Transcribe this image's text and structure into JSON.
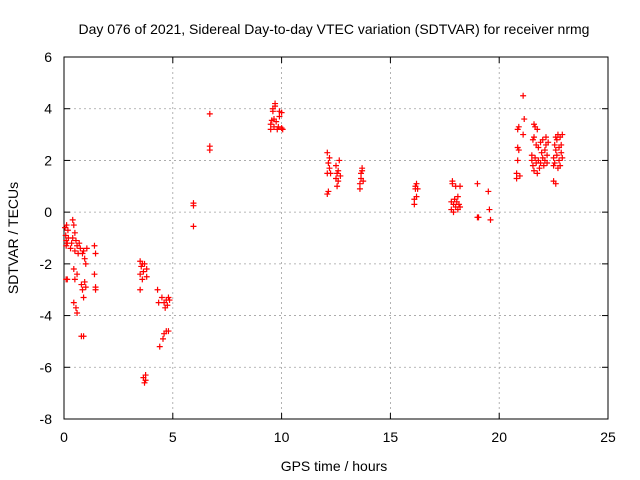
{
  "chart_data": {
    "type": "scatter",
    "title": "Day 076 of 2021, Sidereal Day-to-day VTEC variation (SDTVAR) for receiver nrmg",
    "xlabel": "GPS time / hours",
    "ylabel": "SDTVAR / TECUs",
    "xlim": [
      0,
      25
    ],
    "ylim": [
      -8,
      6
    ],
    "xticks": [
      0,
      5,
      10,
      15,
      20,
      25
    ],
    "yticks": [
      -8,
      -6,
      -4,
      -2,
      0,
      2,
      4,
      6
    ],
    "x_tick_labels": [
      "0",
      "5",
      "10",
      "15",
      "20",
      "25"
    ],
    "y_tick_labels": [
      "-8",
      "-6",
      "-4",
      "-2",
      "0",
      "2",
      "4",
      "6"
    ],
    "grid": true,
    "marker": "+",
    "color": "#ff0000",
    "series": [
      {
        "name": "SDTVAR",
        "points": [
          [
            0.05,
            -0.6
          ],
          [
            0.08,
            -0.9
          ],
          [
            0.1,
            -1.1
          ],
          [
            0.1,
            -1.3
          ],
          [
            0.12,
            -0.5
          ],
          [
            0.15,
            -1.2
          ],
          [
            0.15,
            -2.6
          ],
          [
            0.1,
            -2.6
          ],
          [
            0.18,
            -0.7
          ],
          [
            0.2,
            -1.0
          ],
          [
            0.3,
            -1.4
          ],
          [
            0.35,
            -1.2
          ],
          [
            0.4,
            -0.3
          ],
          [
            0.4,
            -1.0
          ],
          [
            0.45,
            -0.5
          ],
          [
            0.45,
            -2.2
          ],
          [
            0.45,
            -3.5
          ],
          [
            0.5,
            -0.8
          ],
          [
            0.5,
            -1.5
          ],
          [
            0.5,
            -2.6
          ],
          [
            0.55,
            -3.7
          ],
          [
            0.55,
            -1.1
          ],
          [
            0.6,
            -1.3
          ],
          [
            0.6,
            -2.4
          ],
          [
            0.65,
            -1.6
          ],
          [
            0.6,
            -3.9
          ],
          [
            0.7,
            -1.2
          ],
          [
            0.75,
            -1.4
          ],
          [
            0.8,
            -2.8
          ],
          [
            0.8,
            -4.8
          ],
          [
            0.85,
            -1.6
          ],
          [
            0.85,
            -3.0
          ],
          [
            0.9,
            -1.5
          ],
          [
            0.9,
            -3.3
          ],
          [
            0.9,
            -4.8
          ],
          [
            0.95,
            -1.8
          ],
          [
            0.95,
            -2.7
          ],
          [
            1.0,
            -2.0
          ],
          [
            1.0,
            -2.9
          ],
          [
            1.05,
            -1.4
          ],
          [
            1.4,
            -1.3
          ],
          [
            1.45,
            -1.6
          ],
          [
            1.4,
            -2.4
          ],
          [
            1.45,
            -2.9
          ],
          [
            1.45,
            -3.0
          ],
          [
            3.5,
            -1.9
          ],
          [
            3.55,
            -2.1
          ],
          [
            3.5,
            -2.4
          ],
          [
            3.5,
            -3.0
          ],
          [
            3.6,
            -2.0
          ],
          [
            3.6,
            -2.6
          ],
          [
            3.65,
            -2.3
          ],
          [
            3.7,
            -2.0
          ],
          [
            3.7,
            -6.6
          ],
          [
            3.65,
            -6.4
          ],
          [
            3.75,
            -6.5
          ],
          [
            3.75,
            -6.3
          ],
          [
            3.8,
            -2.5
          ],
          [
            3.8,
            -2.2
          ],
          [
            4.3,
            -3.0
          ],
          [
            4.35,
            -3.5
          ],
          [
            4.4,
            -5.2
          ],
          [
            4.5,
            -3.3
          ],
          [
            4.55,
            -4.9
          ],
          [
            4.6,
            -3.5
          ],
          [
            4.6,
            -4.7
          ],
          [
            4.65,
            -3.7
          ],
          [
            4.7,
            -3.4
          ],
          [
            4.7,
            -4.6
          ],
          [
            4.75,
            -3.6
          ],
          [
            4.8,
            -3.3
          ],
          [
            4.8,
            -4.6
          ],
          [
            4.85,
            -3.4
          ],
          [
            5.95,
            -0.55
          ],
          [
            5.95,
            0.25
          ],
          [
            5.95,
            0.35
          ],
          [
            6.7,
            2.4
          ],
          [
            6.7,
            2.55
          ],
          [
            6.7,
            3.8
          ],
          [
            9.5,
            3.2
          ],
          [
            9.5,
            3.4
          ],
          [
            9.55,
            3.55
          ],
          [
            9.6,
            3.9
          ],
          [
            9.6,
            4.0
          ],
          [
            9.65,
            3.3
          ],
          [
            9.65,
            3.6
          ],
          [
            9.7,
            4.1
          ],
          [
            9.7,
            4.2
          ],
          [
            9.75,
            3.5
          ],
          [
            9.8,
            3.2
          ],
          [
            9.85,
            3.3
          ],
          [
            9.9,
            3.9
          ],
          [
            9.9,
            3.7
          ],
          [
            10.0,
            3.85
          ],
          [
            10.0,
            3.25
          ],
          [
            10.05,
            3.2
          ],
          [
            12.1,
            0.7
          ],
          [
            12.1,
            1.5
          ],
          [
            12.1,
            2.3
          ],
          [
            12.15,
            0.8
          ],
          [
            12.15,
            1.9
          ],
          [
            12.2,
            2.1
          ],
          [
            12.2,
            1.7
          ],
          [
            12.25,
            1.5
          ],
          [
            12.5,
            1.3
          ],
          [
            12.5,
            1.8
          ],
          [
            12.55,
            1.5
          ],
          [
            12.55,
            1.0
          ],
          [
            12.6,
            1.6
          ],
          [
            12.6,
            1.2
          ],
          [
            12.65,
            2.0
          ],
          [
            12.7,
            1.4
          ],
          [
            13.6,
            0.9
          ],
          [
            13.6,
            1.1
          ],
          [
            13.65,
            1.3
          ],
          [
            13.65,
            1.5
          ],
          [
            13.7,
            1.6
          ],
          [
            13.7,
            1.7
          ],
          [
            13.75,
            1.2
          ],
          [
            16.1,
            0.3
          ],
          [
            16.1,
            0.5
          ],
          [
            16.15,
            0.9
          ],
          [
            16.15,
            1.0
          ],
          [
            16.2,
            1.1
          ],
          [
            16.2,
            0.6
          ],
          [
            16.25,
            0.9
          ],
          [
            17.8,
            0.1
          ],
          [
            17.8,
            0.4
          ],
          [
            17.85,
            1.1
          ],
          [
            17.85,
            1.2
          ],
          [
            17.9,
            0.3
          ],
          [
            17.9,
            0.0
          ],
          [
            17.95,
            0.5
          ],
          [
            18.0,
            1.0
          ],
          [
            18.0,
            0.2
          ],
          [
            18.05,
            0.4
          ],
          [
            18.1,
            0.6
          ],
          [
            18.1,
            0.1
          ],
          [
            18.15,
            0.3
          ],
          [
            18.2,
            1.0
          ],
          [
            18.2,
            0.2
          ],
          [
            19.0,
            -0.2
          ],
          [
            19.0,
            1.1
          ],
          [
            19.05,
            -0.2
          ],
          [
            19.5,
            0.8
          ],
          [
            19.55,
            0.1
          ],
          [
            19.6,
            -0.3
          ],
          [
            20.8,
            1.3
          ],
          [
            20.8,
            1.5
          ],
          [
            20.85,
            2.0
          ],
          [
            20.85,
            2.5
          ],
          [
            20.85,
            3.2
          ],
          [
            20.9,
            3.3
          ],
          [
            20.9,
            2.4
          ],
          [
            20.95,
            1.4
          ],
          [
            21.1,
            4.5
          ],
          [
            21.1,
            3.0
          ],
          [
            21.15,
            3.6
          ],
          [
            21.5,
            2.0
          ],
          [
            21.5,
            2.2
          ],
          [
            21.55,
            2.8
          ],
          [
            21.55,
            1.8
          ],
          [
            21.6,
            3.4
          ],
          [
            21.6,
            2.9
          ],
          [
            21.6,
            1.6
          ],
          [
            21.65,
            3.3
          ],
          [
            21.65,
            2.1
          ],
          [
            21.7,
            2.6
          ],
          [
            21.7,
            1.9
          ],
          [
            21.75,
            3.2
          ],
          [
            21.75,
            1.5
          ],
          [
            21.8,
            2.5
          ],
          [
            21.8,
            2.0
          ],
          [
            21.85,
            1.7
          ],
          [
            21.9,
            2.7
          ],
          [
            21.9,
            1.9
          ],
          [
            21.95,
            2.3
          ],
          [
            22.0,
            2.8
          ],
          [
            22.0,
            2.1
          ],
          [
            22.05,
            1.8
          ],
          [
            22.1,
            2.4
          ],
          [
            22.1,
            2.0
          ],
          [
            22.15,
            2.9
          ],
          [
            22.15,
            2.6
          ],
          [
            22.2,
            2.2
          ],
          [
            22.2,
            1.9
          ],
          [
            22.25,
            2.7
          ],
          [
            22.5,
            1.2
          ],
          [
            22.5,
            1.8
          ],
          [
            22.5,
            2.1
          ],
          [
            22.55,
            2.6
          ],
          [
            22.55,
            1.9
          ],
          [
            22.6,
            2.9
          ],
          [
            22.6,
            2.4
          ],
          [
            22.6,
            1.1
          ],
          [
            22.65,
            2.2
          ],
          [
            22.65,
            2.8
          ],
          [
            22.7,
            3.0
          ],
          [
            22.7,
            1.7
          ],
          [
            22.75,
            2.5
          ],
          [
            22.75,
            2.0
          ],
          [
            22.8,
            2.9
          ],
          [
            22.8,
            1.8
          ],
          [
            22.85,
            2.6
          ],
          [
            22.85,
            2.3
          ],
          [
            22.9,
            2.1
          ],
          [
            22.9,
            3.0
          ]
        ]
      }
    ]
  }
}
